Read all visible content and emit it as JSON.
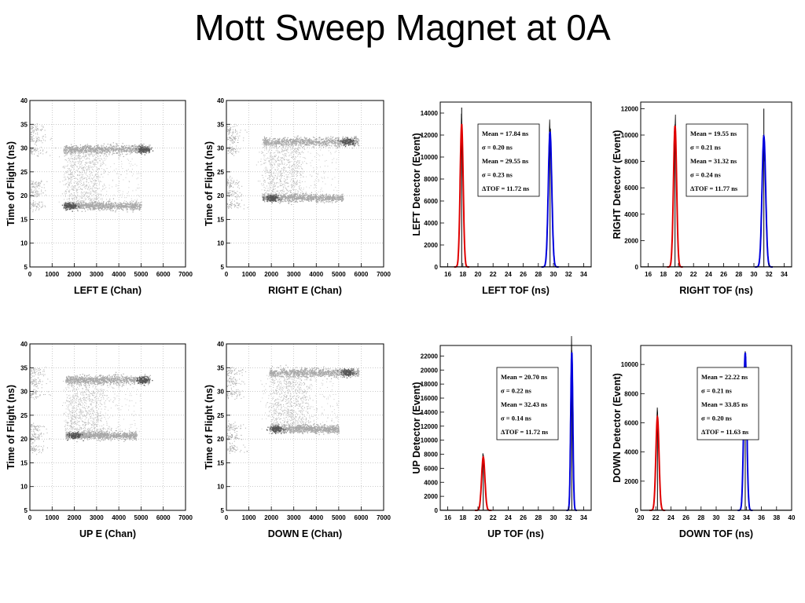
{
  "page": {
    "title": "Mott Sweep Magnet at 0A"
  },
  "chart_data": [
    {
      "type": "scatter",
      "id": "left-e",
      "xlabel": "LEFT E (Chan)",
      "ylabel": "Time of Flight (ns)",
      "xlim": [
        0,
        7000
      ],
      "ylim": [
        5,
        40
      ],
      "xticks": [
        0,
        1000,
        2000,
        3000,
        4000,
        5000,
        6000,
        7000
      ],
      "yticks": [
        5,
        10,
        15,
        20,
        25,
        30,
        35,
        40
      ],
      "grid": true,
      "bands": [
        {
          "x0": 1500,
          "x1": 5400,
          "y": 29.8,
          "width": 1.0,
          "hotspot_x": 5100
        },
        {
          "x0": 1500,
          "x1": 5000,
          "y": 17.9,
          "width": 0.9,
          "hotspot_x": 1800
        }
      ],
      "vertical_cloud": {
        "x0": 1600,
        "x1": 3200,
        "y0": 18,
        "y1": 30
      }
    },
    {
      "type": "scatter",
      "id": "right-e",
      "xlabel": "RIGHT E (Chan)",
      "ylabel": "Time of Flight (ns)",
      "xlim": [
        0,
        7000
      ],
      "ylim": [
        5,
        40
      ],
      "xticks": [
        0,
        1000,
        2000,
        3000,
        4000,
        5000,
        6000,
        7000
      ],
      "yticks": [
        5,
        10,
        15,
        20,
        25,
        30,
        35,
        40
      ],
      "grid": true,
      "bands": [
        {
          "x0": 1600,
          "x1": 5900,
          "y": 31.4,
          "width": 1.0,
          "hotspot_x": 5400
        },
        {
          "x0": 1600,
          "x1": 5200,
          "y": 19.6,
          "width": 0.9,
          "hotspot_x": 2000
        }
      ],
      "vertical_cloud": {
        "x0": 1700,
        "x1": 3300,
        "y0": 19.5,
        "y1": 31.5
      }
    },
    {
      "type": "line",
      "id": "left-tof",
      "xlabel": "LEFT TOF (ns)",
      "ylabel": "LEFT Detector (Event)",
      "xlim": [
        15,
        35
      ],
      "ylim": [
        0,
        15000
      ],
      "xticks": [
        16,
        18,
        20,
        22,
        24,
        26,
        28,
        30,
        32,
        34
      ],
      "yticks": [
        0,
        2000,
        4000,
        6000,
        8000,
        10000,
        12000,
        14000
      ],
      "series": [
        {
          "color": "#e00000",
          "mean": 17.84,
          "sigma": 0.2,
          "amp": 13000,
          "spike": 14500
        },
        {
          "color": "#0000dd",
          "mean": 29.55,
          "sigma": 0.23,
          "amp": 12300,
          "spike": 12000
        }
      ],
      "stats": [
        "Mean = 17.84 ns",
        "σ = 0.20 ns",
        "Mean = 29.55 ns",
        "σ = 0.23 ns",
        "ΔTOF = 11.72 ns"
      ]
    },
    {
      "type": "line",
      "id": "right-tof",
      "xlabel": "RIGHT  TOF (ns)",
      "ylabel": "RIGHT Detector (Event)",
      "xlim": [
        15,
        35
      ],
      "ylim": [
        0,
        12500
      ],
      "xticks": [
        16,
        18,
        20,
        22,
        24,
        26,
        28,
        30,
        32,
        34
      ],
      "yticks": [
        0,
        2000,
        4000,
        6000,
        8000,
        10000,
        12000
      ],
      "series": [
        {
          "color": "#e00000",
          "mean": 19.55,
          "sigma": 0.21,
          "amp": 10700,
          "spike": 10800
        },
        {
          "color": "#0000dd",
          "mean": 31.32,
          "sigma": 0.24,
          "amp": 9900,
          "spike": 12000
        }
      ],
      "stats": [
        "Mean = 19.55 ns",
        "σ = 0.21 ns",
        "Mean = 31.32 ns",
        "σ = 0.24 ns",
        "ΔTOF = 11.77 ns"
      ]
    },
    {
      "type": "scatter",
      "id": "up-e",
      "xlabel": "UP E (Chan)",
      "ylabel": "Time of Flight (ns)",
      "xlim": [
        0,
        7000
      ],
      "ylim": [
        5,
        40
      ],
      "xticks": [
        0,
        1000,
        2000,
        3000,
        4000,
        5000,
        6000,
        7000
      ],
      "yticks": [
        5,
        10,
        15,
        20,
        25,
        30,
        35,
        40
      ],
      "grid": true,
      "bands": [
        {
          "x0": 1600,
          "x1": 5400,
          "y": 32.5,
          "width": 1.0,
          "hotspot_x": 5100
        },
        {
          "x0": 1600,
          "x1": 4800,
          "y": 20.8,
          "width": 0.9,
          "hotspot_x": 2000
        }
      ],
      "vertical_cloud": {
        "x0": 1700,
        "x1": 3300,
        "y0": 20.5,
        "y1": 32.5
      }
    },
    {
      "type": "scatter",
      "id": "down-e",
      "xlabel": "DOWN E (Chan)",
      "ylabel": "Time of Flight (ns)",
      "xlim": [
        0,
        7000
      ],
      "ylim": [
        5,
        40
      ],
      "xticks": [
        0,
        1000,
        2000,
        3000,
        4000,
        5000,
        6000,
        7000
      ],
      "yticks": [
        5,
        10,
        15,
        20,
        25,
        30,
        35,
        40
      ],
      "grid": true,
      "bands": [
        {
          "x0": 1900,
          "x1": 5900,
          "y": 34.0,
          "width": 1.0,
          "hotspot_x": 5400
        },
        {
          "x0": 1900,
          "x1": 5000,
          "y": 22.2,
          "width": 0.9,
          "hotspot_x": 2200
        }
      ],
      "vertical_cloud": {
        "x0": 2000,
        "x1": 3600,
        "y0": 22,
        "y1": 34
      }
    },
    {
      "type": "line",
      "id": "up-tof",
      "xlabel": "UP TOF (ns)",
      "ylabel": "UP Detector (Event)",
      "xlim": [
        15,
        35
      ],
      "ylim": [
        0,
        23500
      ],
      "xticks": [
        16,
        18,
        20,
        22,
        24,
        26,
        28,
        30,
        32,
        34
      ],
      "yticks": [
        0,
        2000,
        4000,
        6000,
        8000,
        10000,
        12000,
        14000,
        16000,
        18000,
        20000,
        22000
      ],
      "series": [
        {
          "color": "#e00000",
          "mean": 20.7,
          "sigma": 0.22,
          "amp": 7600,
          "spike": 7900
        },
        {
          "color": "#0000dd",
          "mean": 32.43,
          "sigma": 0.14,
          "amp": 22500,
          "spike": 22800
        }
      ],
      "stats": [
        "Mean = 20.70 ns",
        "σ = 0.22 ns",
        "Mean = 32.43 ns",
        "σ = 0.14 ns",
        "ΔTOF = 11.72 ns"
      ]
    },
    {
      "type": "line",
      "id": "down-tof",
      "xlabel": "DOWN TOF (ns)",
      "ylabel": "DOWN Detector (Event)",
      "xlim": [
        20,
        40
      ],
      "ylim": [
        0,
        11300
      ],
      "xticks": [
        20,
        22,
        24,
        26,
        28,
        30,
        32,
        34,
        36,
        38,
        40
      ],
      "yticks": [
        0,
        2000,
        4000,
        6000,
        8000,
        10000
      ],
      "series": [
        {
          "color": "#e00000",
          "mean": 22.22,
          "sigma": 0.21,
          "amp": 6400,
          "spike": 6500
        },
        {
          "color": "#0000dd",
          "mean": 33.85,
          "sigma": 0.2,
          "amp": 10800,
          "spike": 10900
        }
      ],
      "stats": [
        "Mean = 22.22 ns",
        "σ = 0.21 ns",
        "Mean = 33.85 ns",
        "σ = 0.20 ns",
        "ΔTOF = 11.63 ns"
      ]
    }
  ]
}
